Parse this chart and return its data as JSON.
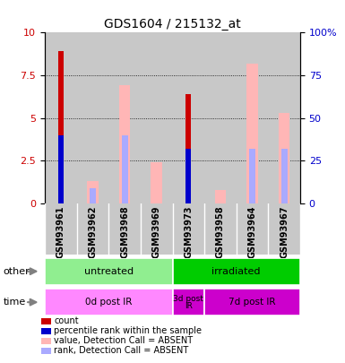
{
  "title": "GDS1604 / 215132_at",
  "samples": [
    "GSM93961",
    "GSM93962",
    "GSM93968",
    "GSM93969",
    "GSM93973",
    "GSM93958",
    "GSM93964",
    "GSM93967"
  ],
  "count_values": [
    8.9,
    0.0,
    0.0,
    0.0,
    6.4,
    0.0,
    0.0,
    0.0
  ],
  "percentile_rank": [
    4.0,
    0.0,
    0.0,
    0.0,
    3.2,
    0.0,
    0.0,
    0.0
  ],
  "absent_value": [
    0.0,
    1.3,
    6.9,
    2.4,
    0.0,
    0.8,
    8.2,
    5.3
  ],
  "absent_rank": [
    0.0,
    0.9,
    4.0,
    0.0,
    0.0,
    0.0,
    3.2,
    3.2
  ],
  "ylim": [
    0,
    10
  ],
  "y2lim": [
    0,
    100
  ],
  "yticks": [
    0,
    2.5,
    5.0,
    7.5,
    10
  ],
  "y2ticks": [
    0,
    25,
    50,
    75,
    100
  ],
  "group_other": [
    {
      "label": "untreated",
      "start": 0,
      "end": 4,
      "color": "#90EE90"
    },
    {
      "label": "irradiated",
      "start": 4,
      "end": 8,
      "color": "#00CC00"
    }
  ],
  "group_time": [
    {
      "label": "0d post IR",
      "start": 0,
      "end": 4,
      "color": "#FF88FF"
    },
    {
      "label": "3d post\nIR",
      "start": 4,
      "end": 5,
      "color": "#CC00CC"
    },
    {
      "label": "7d post IR",
      "start": 5,
      "end": 8,
      "color": "#CC00CC"
    }
  ],
  "color_count": "#CC0000",
  "color_rank": "#0000CC",
  "color_absent_value": "#FFB6B6",
  "color_absent_rank": "#AAAAFF",
  "ax_bg": "#C8C8C8",
  "legend_items": [
    {
      "color": "#CC0000",
      "label": "count"
    },
    {
      "color": "#0000CC",
      "label": "percentile rank within the sample"
    },
    {
      "color": "#FFB6B6",
      "label": "value, Detection Call = ABSENT"
    },
    {
      "color": "#AAAAFF",
      "label": "rank, Detection Call = ABSENT"
    }
  ]
}
